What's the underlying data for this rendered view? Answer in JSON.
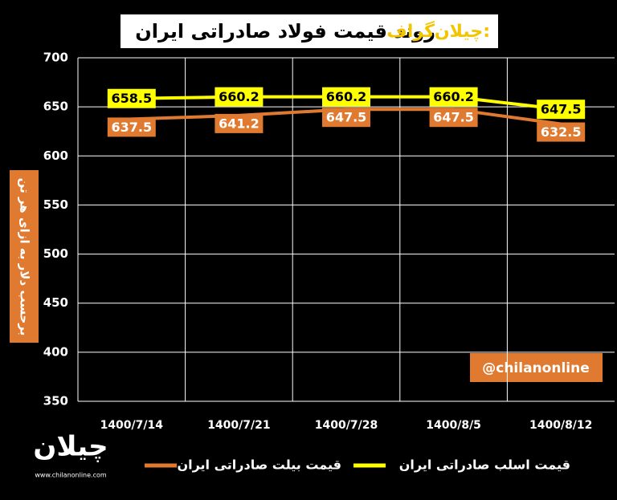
{
  "chart_data": {
    "type": "line",
    "title_prefix": "چیلان‌گراف:",
    "title": "روند قیمت فولاد صادراتی ایران",
    "y_label": "برحسب دلار به ازای هر تن",
    "watermark": "@chilanonline",
    "logo": "چیلان",
    "website": "www.chilanonline.com",
    "categories": [
      "1400/7/14",
      "1400/7/21",
      "1400/7/28",
      "1400/8/5",
      "1400/8/12"
    ],
    "series": [
      {
        "name": "قیمت اسلب صادراتی ایران",
        "color": "#ffff00",
        "label_text_color": "#000000",
        "values": [
          658.5,
          660.2,
          660.2,
          660.2,
          647.5
        ]
      },
      {
        "name": "قیمت بیلت صادراتی ایران",
        "color": "#df7a30",
        "label_text_color": "#ffffff",
        "values": [
          637.5,
          641.2,
          647.5,
          647.5,
          632.5
        ]
      }
    ],
    "ylim": [
      350,
      700
    ],
    "yticks": [
      350,
      400,
      450,
      500,
      550,
      600,
      650,
      700
    ],
    "grid": true
  }
}
